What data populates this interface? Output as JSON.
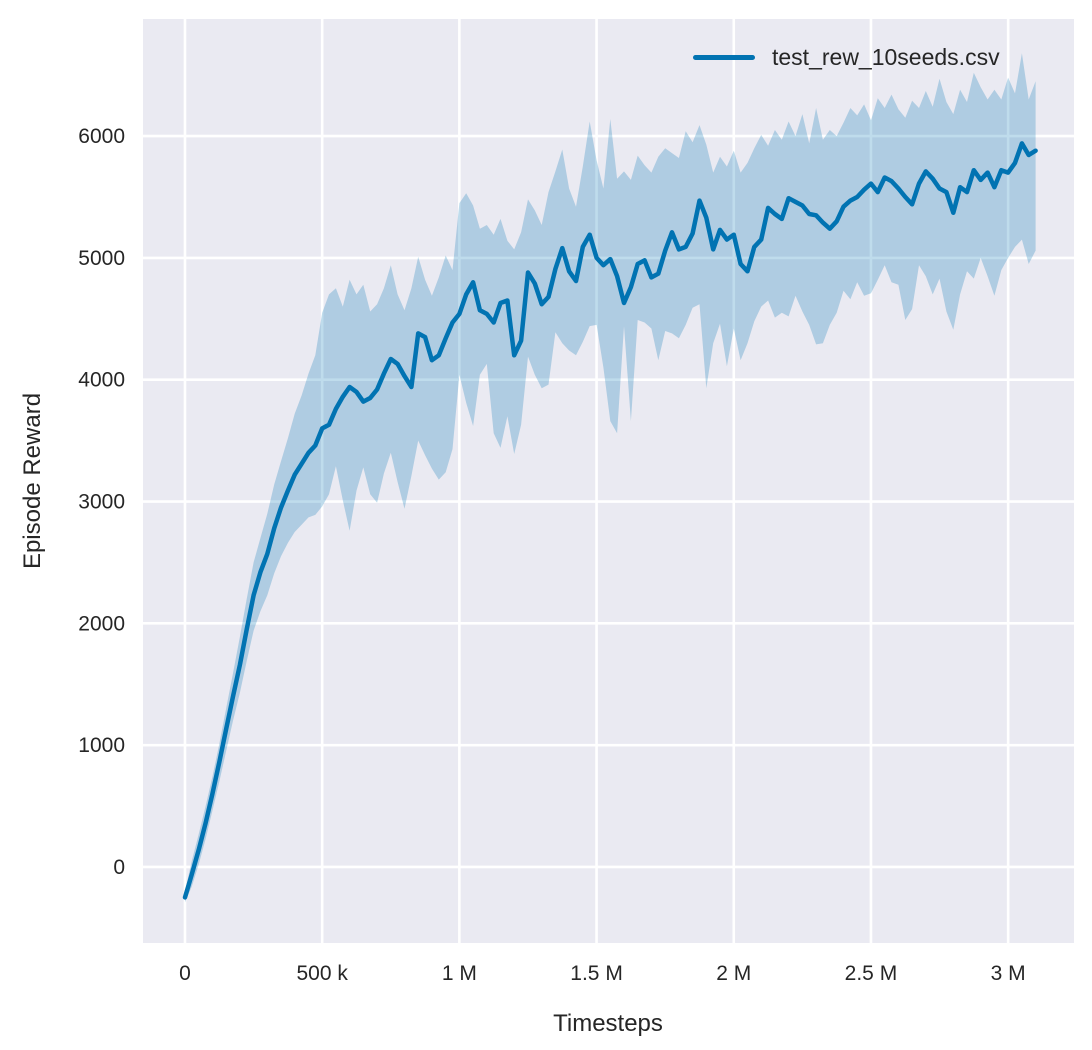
{
  "window": {
    "background": "#ffffff"
  },
  "style": {
    "axes_background": "#eaeaf2",
    "grid_color": "#ffffff",
    "grid_width": 2.6,
    "text_color": "#262626",
    "line_color": "#0173b2",
    "band_color": "#0173b2",
    "band_opacity": 0.25,
    "line_width": 4.5,
    "tick_font_size": 21,
    "label_font_size": 24
  },
  "chart_data": {
    "type": "line",
    "title": "",
    "xlabel": "Timesteps",
    "ylabel": "Episode Reward",
    "grid": true,
    "legend_position": "upper right",
    "xlim": [
      -153000,
      3240000
    ],
    "ylim": [
      -624,
      6961
    ],
    "x_ticks": [
      {
        "value": 0,
        "label": "0"
      },
      {
        "value": 500000,
        "label": "500 k"
      },
      {
        "value": 1000000,
        "label": "1 M"
      },
      {
        "value": 1500000,
        "label": "1.5 M"
      },
      {
        "value": 2000000,
        "label": "2 M"
      },
      {
        "value": 2500000,
        "label": "2.5 M"
      },
      {
        "value": 3000000,
        "label": "3 M"
      }
    ],
    "y_ticks": [
      {
        "value": 0,
        "label": "0"
      },
      {
        "value": 1000,
        "label": "1000"
      },
      {
        "value": 2000,
        "label": "2000"
      },
      {
        "value": 3000,
        "label": "3000"
      },
      {
        "value": 4000,
        "label": "4000"
      },
      {
        "value": 5000,
        "label": "5000"
      },
      {
        "value": 6000,
        "label": "6000"
      }
    ],
    "series": [
      {
        "name": "test_rew_10seeds.csv",
        "color": "#0173b2",
        "x": [
          0,
          25000,
          50000,
          75000,
          100000,
          125000,
          150000,
          175000,
          200000,
          225000,
          250000,
          275000,
          300000,
          325000,
          350000,
          375000,
          400000,
          425000,
          450000,
          475000,
          500000,
          525000,
          550000,
          575000,
          600000,
          625000,
          650000,
          675000,
          700000,
          725000,
          750000,
          775000,
          800000,
          825000,
          850000,
          875000,
          900000,
          925000,
          950000,
          975000,
          1000000,
          1025000,
          1050000,
          1075000,
          1100000,
          1125000,
          1150000,
          1175000,
          1200000,
          1225000,
          1250000,
          1275000,
          1300000,
          1325000,
          1350000,
          1375000,
          1400000,
          1425000,
          1450000,
          1475000,
          1500000,
          1525000,
          1550000,
          1575000,
          1600000,
          1625000,
          1650000,
          1675000,
          1700000,
          1725000,
          1750000,
          1775000,
          1800000,
          1825000,
          1850000,
          1875000,
          1900000,
          1925000,
          1950000,
          1975000,
          2000000,
          2025000,
          2050000,
          2075000,
          2100000,
          2125000,
          2150000,
          2175000,
          2200000,
          2225000,
          2250000,
          2275000,
          2300000,
          2325000,
          2350000,
          2375000,
          2400000,
          2425000,
          2450000,
          2475000,
          2500000,
          2525000,
          2550000,
          2575000,
          2600000,
          2625000,
          2650000,
          2675000,
          2700000,
          2725000,
          2750000,
          2775000,
          2800000,
          2825000,
          2850000,
          2875000,
          2900000,
          2925000,
          2950000,
          2975000,
          3000000,
          3025000,
          3050000,
          3075000,
          3100000
        ],
        "mean": [
          -250,
          -60,
          140,
          360,
          600,
          860,
          1130,
          1400,
          1660,
          1950,
          2230,
          2420,
          2570,
          2780,
          2950,
          3090,
          3220,
          3310,
          3400,
          3460,
          3600,
          3630,
          3760,
          3860,
          3940,
          3900,
          3820,
          3850,
          3920,
          4050,
          4170,
          4130,
          4030,
          3940,
          4380,
          4350,
          4160,
          4200,
          4340,
          4470,
          4540,
          4700,
          4800,
          4570,
          4540,
          4470,
          4630,
          4650,
          4200,
          4320,
          4880,
          4790,
          4620,
          4680,
          4910,
          5080,
          4890,
          4810,
          5090,
          5190,
          5000,
          4940,
          4990,
          4850,
          4630,
          4760,
          4950,
          4980,
          4840,
          4870,
          5060,
          5210,
          5070,
          5090,
          5200,
          5470,
          5330,
          5070,
          5230,
          5150,
          5190,
          4950,
          4890,
          5090,
          5150,
          5410,
          5360,
          5320,
          5490,
          5460,
          5430,
          5360,
          5350,
          5290,
          5240,
          5300,
          5420,
          5470,
          5500,
          5560,
          5610,
          5540,
          5660,
          5630,
          5570,
          5500,
          5440,
          5610,
          5710,
          5650,
          5570,
          5540,
          5370,
          5580,
          5540,
          5720,
          5640,
          5700,
          5580,
          5720,
          5700,
          5780,
          5940,
          5845,
          5880
        ],
        "band_low": [
          -290,
          -160,
          20,
          230,
          460,
          700,
          950,
          1200,
          1430,
          1690,
          1940,
          2100,
          2230,
          2410,
          2550,
          2660,
          2750,
          2810,
          2870,
          2890,
          2960,
          3060,
          3290,
          3010,
          2760,
          3090,
          3280,
          3060,
          2990,
          3230,
          3400,
          3160,
          2940,
          3210,
          3500,
          3380,
          3270,
          3180,
          3240,
          3430,
          4040,
          3810,
          3620,
          4040,
          4130,
          3560,
          3440,
          3700,
          3390,
          3630,
          4190,
          4040,
          3930,
          3960,
          4390,
          4300,
          4240,
          4200,
          4310,
          4440,
          4450,
          4100,
          3660,
          3560,
          4440,
          3660,
          4490,
          4470,
          4420,
          4160,
          4400,
          4380,
          4340,
          4450,
          4590,
          4620,
          3930,
          4300,
          4460,
          4110,
          4420,
          4160,
          4300,
          4480,
          4600,
          4650,
          4510,
          4550,
          4520,
          4690,
          4560,
          4450,
          4290,
          4300,
          4450,
          4550,
          4730,
          4660,
          4800,
          4690,
          4710,
          4820,
          4940,
          4800,
          4780,
          4490,
          4580,
          4940,
          4850,
          4700,
          4830,
          4560,
          4410,
          4700,
          4890,
          4830,
          5000,
          4850,
          4690,
          4900,
          5000,
          5090,
          5150,
          4950,
          5060
        ],
        "band_high": [
          -200,
          50,
          270,
          500,
          740,
          1010,
          1300,
          1590,
          1890,
          2200,
          2500,
          2700,
          2900,
          3140,
          3330,
          3520,
          3720,
          3870,
          4050,
          4200,
          4550,
          4700,
          4750,
          4600,
          4820,
          4700,
          4780,
          4560,
          4620,
          4750,
          4940,
          4700,
          4570,
          4750,
          5010,
          4820,
          4690,
          4840,
          5020,
          4900,
          5450,
          5530,
          5430,
          5240,
          5270,
          5190,
          5320,
          5140,
          5070,
          5210,
          5480,
          5390,
          5270,
          5540,
          5710,
          5890,
          5570,
          5420,
          5750,
          6120,
          5800,
          5570,
          6140,
          5650,
          5710,
          5640,
          5840,
          5760,
          5700,
          5830,
          5900,
          5860,
          5820,
          6040,
          5950,
          6090,
          5930,
          5700,
          5830,
          5750,
          5880,
          5700,
          5780,
          5900,
          6010,
          5920,
          6050,
          5970,
          6120,
          6000,
          6180,
          5940,
          6230,
          5970,
          6050,
          6000,
          6110,
          6230,
          6170,
          6260,
          6130,
          6310,
          6230,
          6340,
          6220,
          6150,
          6290,
          6230,
          6370,
          6240,
          6470,
          6280,
          6180,
          6380,
          6280,
          6520,
          6400,
          6300,
          6380,
          6300,
          6480,
          6350,
          6680,
          6300,
          6450
        ]
      }
    ]
  }
}
